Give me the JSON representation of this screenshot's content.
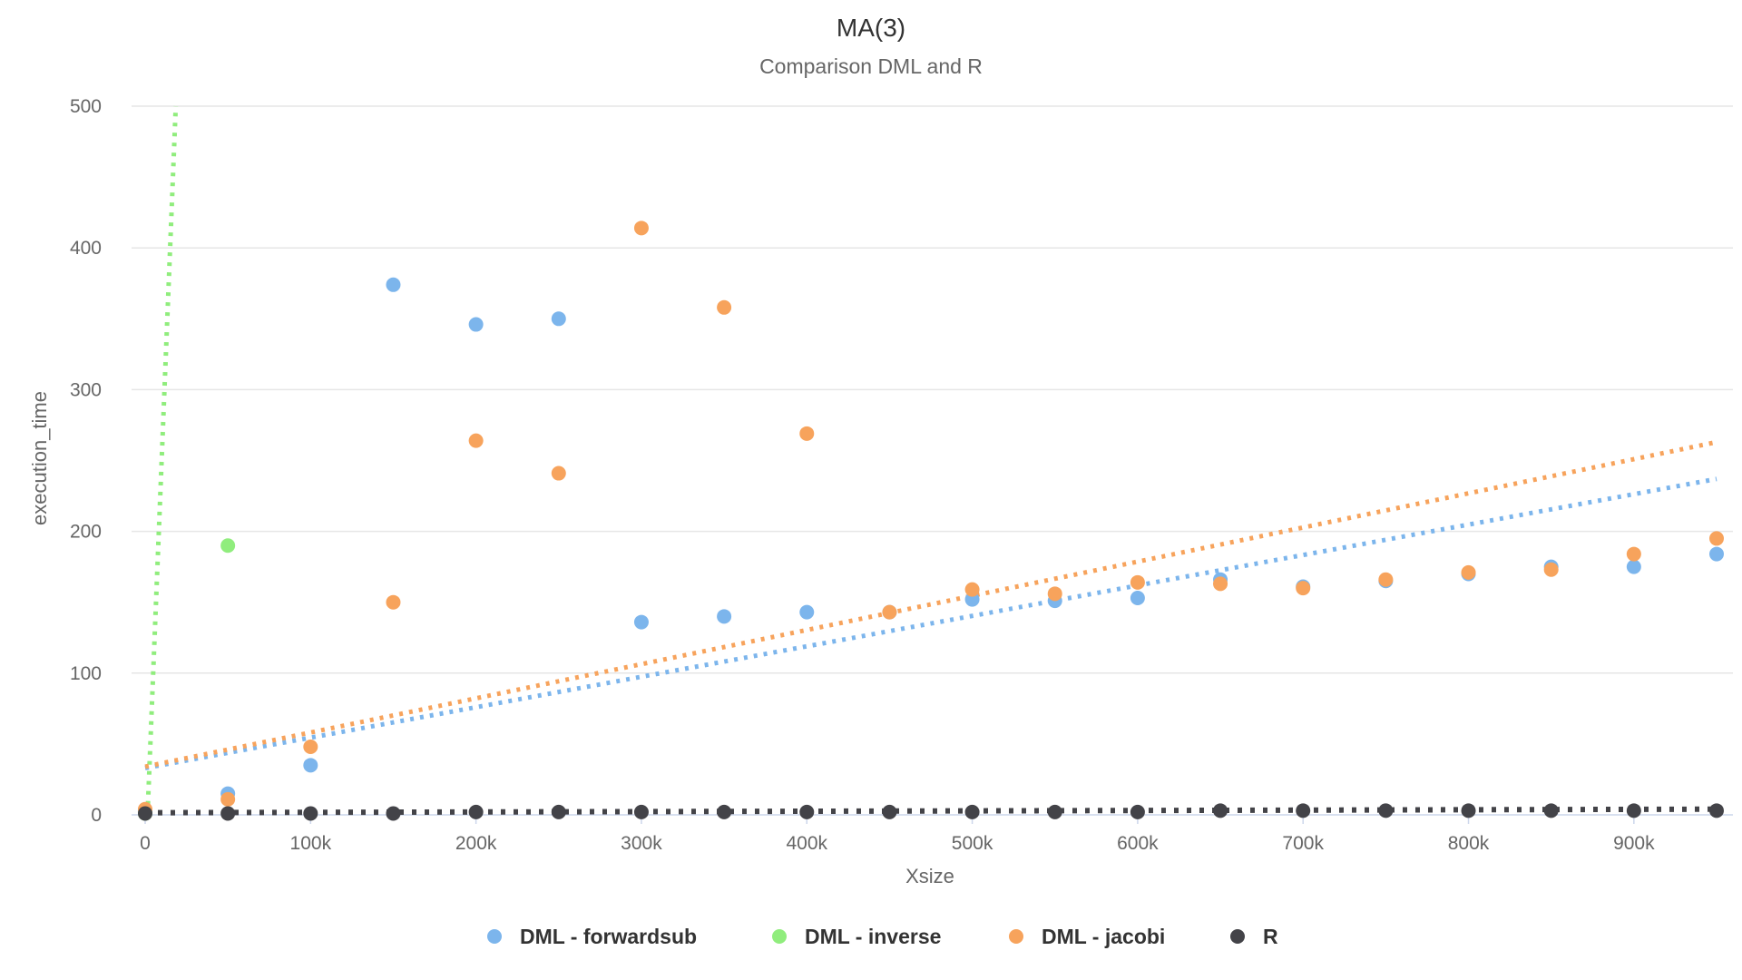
{
  "chart_data": {
    "type": "scatter",
    "title": "MA(3)",
    "subtitle": "Comparison DML and R",
    "xlabel": "Xsize",
    "ylabel": "execution_time",
    "xlim": [
      0,
      950000
    ],
    "ylim": [
      0,
      500
    ],
    "x_ticks": [
      {
        "value": 0,
        "label": "0"
      },
      {
        "value": 100000,
        "label": "100k"
      },
      {
        "value": 200000,
        "label": "200k"
      },
      {
        "value": 300000,
        "label": "300k"
      },
      {
        "value": 400000,
        "label": "400k"
      },
      {
        "value": 500000,
        "label": "500k"
      },
      {
        "value": 600000,
        "label": "600k"
      },
      {
        "value": 700000,
        "label": "700k"
      },
      {
        "value": 800000,
        "label": "800k"
      },
      {
        "value": 900000,
        "label": "900k"
      }
    ],
    "y_ticks": [
      {
        "value": 0,
        "label": "0"
      },
      {
        "value": 100,
        "label": "100"
      },
      {
        "value": 200,
        "label": "200"
      },
      {
        "value": 300,
        "label": "300"
      },
      {
        "value": 400,
        "label": "400"
      },
      {
        "value": 500,
        "label": "500"
      }
    ],
    "grid": "horizontal",
    "legend_position": "bottom-center",
    "series": [
      {
        "name": "DML - forwardsub",
        "color": "#7cb5ec",
        "points": [
          [
            0,
            2
          ],
          [
            50000,
            15
          ],
          [
            100000,
            35
          ],
          [
            150000,
            374
          ],
          [
            200000,
            346
          ],
          [
            250000,
            350
          ],
          [
            300000,
            136
          ],
          [
            350000,
            140
          ],
          [
            400000,
            143
          ],
          [
            450000,
            143
          ],
          [
            500000,
            152
          ],
          [
            550000,
            151
          ],
          [
            600000,
            153
          ],
          [
            650000,
            166
          ],
          [
            700000,
            161
          ],
          [
            750000,
            165
          ],
          [
            800000,
            170
          ],
          [
            850000,
            175
          ],
          [
            900000,
            175
          ],
          [
            950000,
            184
          ]
        ],
        "trend": [
          [
            0,
            33
          ],
          [
            950000,
            237
          ]
        ]
      },
      {
        "name": "DML - inverse",
        "color": "#90ed7d",
        "points": [
          [
            0,
            1
          ],
          [
            50000,
            190
          ]
        ],
        "trend": [
          [
            0,
            -42
          ],
          [
            18500,
            500
          ]
        ]
      },
      {
        "name": "DML - jacobi",
        "color": "#f7a35c",
        "points": [
          [
            0,
            4
          ],
          [
            50000,
            11
          ],
          [
            100000,
            48
          ],
          [
            150000,
            150
          ],
          [
            200000,
            264
          ],
          [
            250000,
            241
          ],
          [
            300000,
            414
          ],
          [
            350000,
            358
          ],
          [
            400000,
            269
          ],
          [
            450000,
            143
          ],
          [
            500000,
            159
          ],
          [
            550000,
            156
          ],
          [
            600000,
            164
          ],
          [
            650000,
            163
          ],
          [
            700000,
            160
          ],
          [
            750000,
            166
          ],
          [
            800000,
            171
          ],
          [
            850000,
            173
          ],
          [
            900000,
            184
          ],
          [
            950000,
            195
          ]
        ],
        "trend": [
          [
            0,
            34
          ],
          [
            950000,
            263
          ]
        ]
      },
      {
        "name": "R",
        "color": "#434348",
        "points": [
          [
            0,
            1
          ],
          [
            50000,
            1
          ],
          [
            100000,
            1
          ],
          [
            150000,
            1
          ],
          [
            200000,
            2
          ],
          [
            250000,
            2
          ],
          [
            300000,
            2
          ],
          [
            350000,
            2
          ],
          [
            400000,
            2
          ],
          [
            450000,
            2
          ],
          [
            500000,
            2
          ],
          [
            550000,
            2
          ],
          [
            600000,
            2
          ],
          [
            650000,
            3
          ],
          [
            700000,
            3
          ],
          [
            750000,
            3
          ],
          [
            800000,
            3
          ],
          [
            850000,
            3
          ],
          [
            900000,
            3
          ],
          [
            950000,
            3
          ]
        ],
        "trend": [
          [
            0,
            1.5
          ],
          [
            950000,
            4
          ]
        ]
      }
    ]
  }
}
